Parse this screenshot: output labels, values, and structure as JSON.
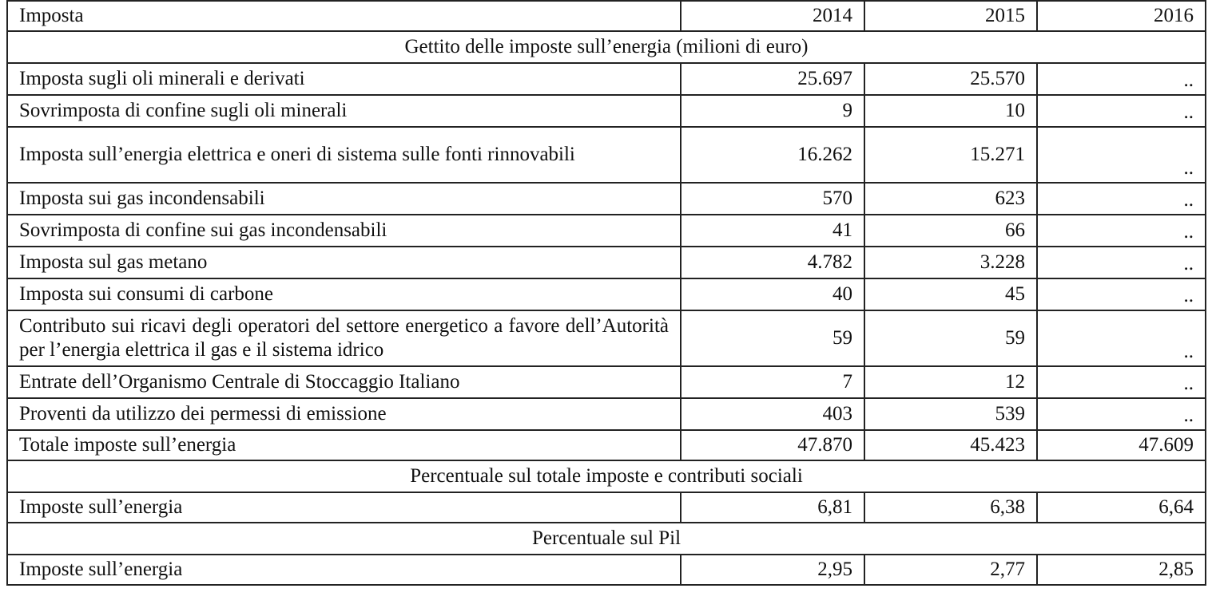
{
  "header": {
    "col0": "Imposta",
    "years": [
      "2014",
      "2015",
      "2016"
    ]
  },
  "section1": {
    "title": "Gettito delle imposte sull’energia (milioni di euro)",
    "rows": [
      {
        "label": "Imposta sugli oli minerali e derivati",
        "v2014": "25.697",
        "v2015": "25.570",
        "v2016": ".."
      },
      {
        "label": "Sovrimposta di confine sugli oli minerali",
        "v2014": "9",
        "v2015": "10",
        "v2016": ".."
      },
      {
        "label": "Imposta sull’energia elettrica e oneri di sistema sulle fonti rinnovabili",
        "v2014": "16.262",
        "v2015": "15.271",
        "v2016": ".."
      },
      {
        "label": "Imposta sui gas incondensabili",
        "v2014": "570",
        "v2015": "623",
        "v2016": ".."
      },
      {
        "label": "Sovrimposta di confine sui gas incondensabili",
        "v2014": "41",
        "v2015": "66",
        "v2016": ".."
      },
      {
        "label": "Imposta sul gas metano",
        "v2014": "4.782",
        "v2015": "3.228",
        "v2016": ".."
      },
      {
        "label": "Imposta sui consumi di carbone",
        "v2014": "40",
        "v2015": "45",
        "v2016": ".."
      },
      {
        "label": "Contributo sui ricavi degli operatori del settore energetico a favore dell’Autorità per l’energia elettrica il gas e il sistema idrico",
        "v2014": "59",
        "v2015": "59",
        "v2016": ".."
      },
      {
        "label": "Entrate dell’Organismo Centrale di Stoccaggio Italiano",
        "v2014": "7",
        "v2015": "12",
        "v2016": ".."
      },
      {
        "label": "Proventi da utilizzo dei permessi di emissione",
        "v2014": "403",
        "v2015": "539",
        "v2016": ".."
      }
    ],
    "total": {
      "label": "Totale imposte sull’energia",
      "v2014": "47.870",
      "v2015": "45.423",
      "v2016": "47.609"
    }
  },
  "section2": {
    "title": "Percentuale sul totale imposte e contributi sociali",
    "row": {
      "label": "Imposte sull’energia",
      "v2014": "6,81",
      "v2015": "6,38",
      "v2016": "6,64"
    }
  },
  "section3": {
    "title": "Percentuale sul Pil",
    "row": {
      "label": "Imposte sull’energia",
      "v2014": "2,95",
      "v2015": "2,77",
      "v2016": "2,85"
    }
  }
}
